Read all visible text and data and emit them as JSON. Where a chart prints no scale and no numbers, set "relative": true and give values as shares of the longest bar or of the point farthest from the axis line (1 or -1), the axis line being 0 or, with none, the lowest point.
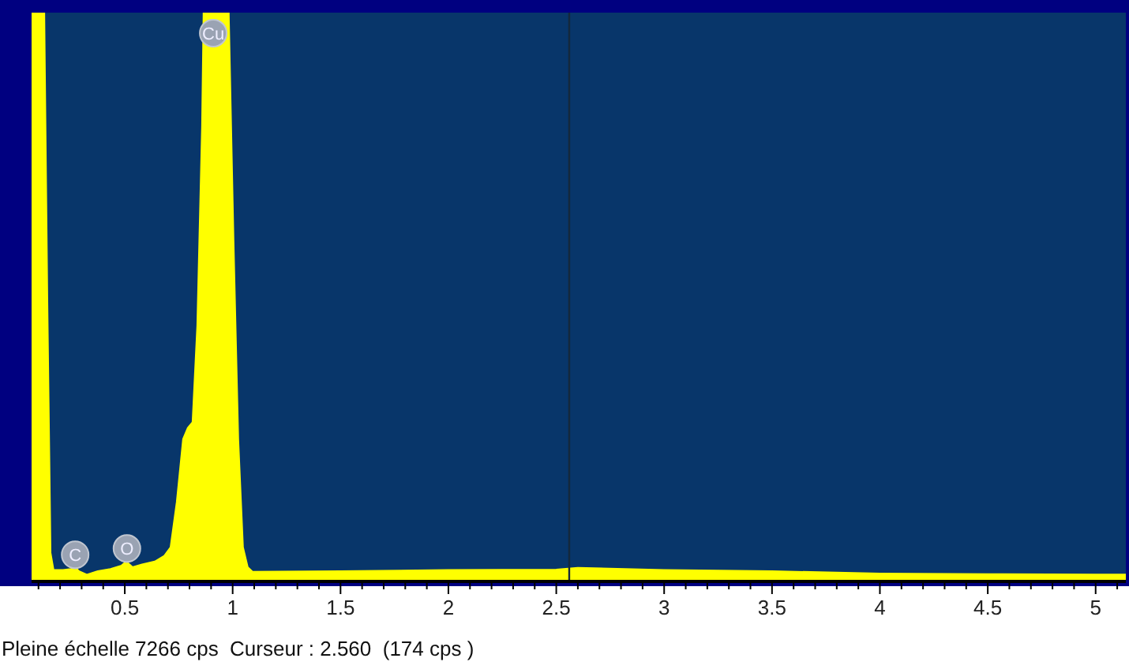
{
  "chart_data": {
    "type": "area",
    "relative": true,
    "x": [
      0.068,
      0.127,
      0.141,
      0.156,
      0.17,
      0.214,
      0.251,
      0.266,
      0.287,
      0.324,
      0.375,
      0.434,
      0.485,
      0.507,
      0.536,
      0.58,
      0.639,
      0.683,
      0.712,
      0.741,
      0.77,
      0.792,
      0.814,
      0.836,
      0.858,
      0.865,
      0.982,
      1.004,
      1.026,
      1.048,
      1.07,
      1.092,
      1.5,
      2,
      2.5,
      2.6,
      3,
      3.5,
      4,
      4.5,
      5,
      5.14
    ],
    "series": [
      {
        "color": "#ffff00",
        "values": [
          1,
          1,
          0.5,
          0.05,
          0.02,
          0.02,
          0.022,
          0.028,
          0.018,
          0.012,
          0.018,
          0.022,
          0.028,
          0.035,
          0.025,
          0.03,
          0.035,
          0.045,
          0.06,
          0.14,
          0.25,
          0.27,
          0.28,
          0.45,
          0.8,
          1,
          1,
          0.6,
          0.25,
          0.06,
          0.025,
          0.017,
          0.018,
          0.02,
          0.021,
          0.024,
          0.02,
          0.018,
          0.014,
          0.013,
          0.012,
          0.012
        ]
      }
    ],
    "xlim": [
      0.068,
      5.14
    ],
    "xticks": [
      {
        "value": 0.1,
        "label": null
      },
      {
        "value": 0.2,
        "label": null
      },
      {
        "value": 0.3,
        "label": null
      },
      {
        "value": 0.4,
        "label": null
      },
      0.5,
      {
        "value": 0.6,
        "label": null
      },
      {
        "value": 0.7,
        "label": null
      },
      {
        "value": 0.8,
        "label": null
      },
      {
        "value": 0.9,
        "label": null
      },
      1,
      {
        "value": 1.1,
        "label": null
      },
      {
        "value": 1.2,
        "label": null
      },
      {
        "value": 1.3,
        "label": null
      },
      {
        "value": 1.4,
        "label": null
      },
      1.5,
      {
        "value": 1.6,
        "label": null
      },
      {
        "value": 1.7,
        "label": null
      },
      {
        "value": 1.8,
        "label": null
      },
      {
        "value": 1.9,
        "label": null
      },
      2,
      {
        "value": 2.1,
        "label": null
      },
      {
        "value": 2.2,
        "label": null
      },
      {
        "value": 2.3,
        "label": null
      },
      {
        "value": 2.4,
        "label": null
      },
      2.5,
      {
        "value": 2.6,
        "label": null
      },
      {
        "value": 2.7,
        "label": null
      },
      {
        "value": 2.8,
        "label": null
      },
      {
        "value": 2.9,
        "label": null
      },
      3,
      {
        "value": 3.1,
        "label": null
      },
      {
        "value": 3.2,
        "label": null
      },
      {
        "value": 3.3,
        "label": null
      },
      {
        "value": 3.4,
        "label": null
      },
      3.5,
      {
        "value": 3.6,
        "label": null
      },
      {
        "value": 3.7,
        "label": null
      },
      {
        "value": 3.8,
        "label": null
      },
      {
        "value": 3.9,
        "label": null
      },
      4,
      {
        "value": 4.1,
        "label": null
      },
      {
        "value": 4.2,
        "label": null
      },
      {
        "value": 4.3,
        "label": null
      },
      {
        "value": 4.4,
        "label": null
      },
      4.5,
      {
        "value": 4.6,
        "label": null
      },
      {
        "value": 4.7,
        "label": null
      },
      {
        "value": 4.8,
        "label": null
      },
      {
        "value": 4.9,
        "label": null
      },
      5,
      {
        "value": 5.1,
        "label": null
      }
    ],
    "ref_lines": [
      {
        "axis": "x",
        "value": 2.56,
        "color": "#14283c"
      }
    ],
    "annotations": [
      {
        "text": "C",
        "x": 0.27,
        "y": 0.022
      },
      {
        "text": "O",
        "x": 0.51,
        "y": 0.033
      },
      {
        "text": "Cu",
        "x": 0.91,
        "y": 1
      },
      "Pleine échelle 7266 cps  Curseur : 2.560  (174 cps )"
    ]
  }
}
